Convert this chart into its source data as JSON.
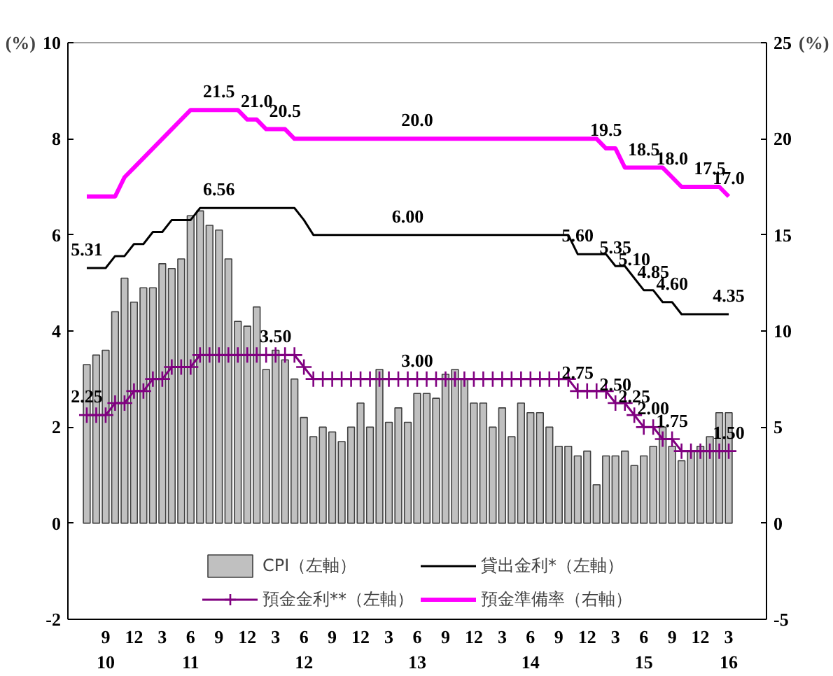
{
  "chart_data": {
    "type": "bar",
    "ylabel": "(%)",
    "y2label": "(%)",
    "x": [
      "2010-07",
      "2010-08",
      "2010-09",
      "2010-10",
      "2010-11",
      "2010-12",
      "2011-01",
      "2011-02",
      "2011-03",
      "2011-04",
      "2011-05",
      "2011-06",
      "2011-07",
      "2011-08",
      "2011-09",
      "2011-10",
      "2011-11",
      "2011-12",
      "2012-01",
      "2012-02",
      "2012-03",
      "2012-04",
      "2012-05",
      "2012-06",
      "2012-07",
      "2012-08",
      "2012-09",
      "2012-10",
      "2012-11",
      "2012-12",
      "2013-01",
      "2013-02",
      "2013-03",
      "2013-04",
      "2013-05",
      "2013-06",
      "2013-07",
      "2013-08",
      "2013-09",
      "2013-10",
      "2013-11",
      "2013-12",
      "2014-01",
      "2014-02",
      "2014-03",
      "2014-04",
      "2014-05",
      "2014-06",
      "2014-07",
      "2014-08",
      "2014-09",
      "2014-10",
      "2014-11",
      "2014-12",
      "2015-01",
      "2015-02",
      "2015-03",
      "2015-04",
      "2015-05",
      "2015-06",
      "2015-07",
      "2015-08",
      "2015-09",
      "2015-10",
      "2015-11",
      "2015-12",
      "2016-01",
      "2016-02",
      "2016-03"
    ],
    "series": [
      {
        "name": "CPI（左軸）",
        "color": "#c0c0c0",
        "values": [
          3.3,
          3.5,
          3.6,
          4.4,
          5.1,
          4.6,
          4.9,
          4.9,
          5.4,
          5.3,
          5.5,
          6.4,
          6.5,
          6.2,
          6.1,
          5.5,
          4.2,
          4.1,
          4.5,
          3.2,
          3.6,
          3.4,
          3.0,
          2.2,
          1.8,
          2.0,
          1.9,
          1.7,
          2.0,
          2.5,
          2.0,
          3.2,
          2.1,
          2.4,
          2.1,
          2.7,
          2.7,
          2.6,
          3.1,
          3.2,
          3.0,
          2.5,
          2.5,
          2.0,
          2.4,
          1.8,
          2.5,
          2.3,
          2.3,
          2.0,
          1.6,
          1.6,
          1.4,
          1.5,
          0.8,
          1.4,
          1.4,
          1.5,
          1.2,
          1.4,
          1.6,
          2.0,
          1.6,
          1.3,
          1.5,
          1.6,
          1.8,
          2.3,
          2.3
        ]
      },
      {
        "name": "貸出金利*（左軸）",
        "type": "line",
        "color": "#000000",
        "marker": "none",
        "values": [
          5.31,
          5.31,
          5.31,
          5.56,
          5.56,
          5.81,
          5.81,
          6.06,
          6.06,
          6.31,
          6.31,
          6.31,
          6.56,
          6.56,
          6.56,
          6.56,
          6.56,
          6.56,
          6.56,
          6.56,
          6.56,
          6.56,
          6.56,
          6.31,
          6.0,
          6.0,
          6.0,
          6.0,
          6.0,
          6.0,
          6.0,
          6.0,
          6.0,
          6.0,
          6.0,
          6.0,
          6.0,
          6.0,
          6.0,
          6.0,
          6.0,
          6.0,
          6.0,
          6.0,
          6.0,
          6.0,
          6.0,
          6.0,
          6.0,
          6.0,
          6.0,
          6.0,
          5.6,
          5.6,
          5.6,
          5.6,
          5.35,
          5.35,
          5.1,
          4.85,
          4.85,
          4.6,
          4.6,
          4.35,
          4.35,
          4.35,
          4.35,
          4.35,
          4.35
        ],
        "value_labels": [
          "5.31",
          null,
          null,
          null,
          null,
          null,
          null,
          null,
          null,
          null,
          null,
          null,
          null,
          null,
          "6.56",
          null,
          null,
          null,
          null,
          null,
          null,
          null,
          null,
          null,
          null,
          null,
          null,
          null,
          null,
          null,
          null,
          null,
          null,
          null,
          "6.00",
          null,
          null,
          null,
          null,
          null,
          null,
          null,
          null,
          null,
          null,
          null,
          null,
          null,
          null,
          null,
          null,
          null,
          "5.60",
          null,
          null,
          null,
          "5.35",
          null,
          "5.10",
          null,
          "4.85",
          null,
          "4.60",
          null,
          null,
          null,
          null,
          null,
          "4.35"
        ]
      },
      {
        "name": "預金金利**（左軸）",
        "type": "line",
        "color": "#800080",
        "marker": "cross",
        "values": [
          2.25,
          2.25,
          2.25,
          2.5,
          2.5,
          2.75,
          2.75,
          3.0,
          3.0,
          3.25,
          3.25,
          3.25,
          3.5,
          3.5,
          3.5,
          3.5,
          3.5,
          3.5,
          3.5,
          3.5,
          3.5,
          3.5,
          3.5,
          3.25,
          3.0,
          3.0,
          3.0,
          3.0,
          3.0,
          3.0,
          3.0,
          3.0,
          3.0,
          3.0,
          3.0,
          3.0,
          3.0,
          3.0,
          3.0,
          3.0,
          3.0,
          3.0,
          3.0,
          3.0,
          3.0,
          3.0,
          3.0,
          3.0,
          3.0,
          3.0,
          3.0,
          3.0,
          2.75,
          2.75,
          2.75,
          2.75,
          2.5,
          2.5,
          2.25,
          2.0,
          2.0,
          1.75,
          1.75,
          1.5,
          1.5,
          1.5,
          1.5,
          1.5,
          1.5
        ],
        "value_labels": [
          "2.25",
          null,
          null,
          null,
          null,
          null,
          null,
          null,
          null,
          null,
          null,
          null,
          null,
          null,
          null,
          null,
          null,
          null,
          null,
          null,
          "3.50",
          null,
          null,
          null,
          null,
          null,
          null,
          null,
          null,
          null,
          null,
          null,
          null,
          null,
          null,
          "3.00",
          null,
          null,
          null,
          null,
          null,
          null,
          null,
          null,
          null,
          null,
          null,
          null,
          null,
          null,
          null,
          null,
          "2.75",
          null,
          null,
          null,
          "2.50",
          null,
          "2.25",
          null,
          "2.00",
          null,
          "1.75",
          null,
          null,
          null,
          null,
          null,
          "1.50"
        ]
      },
      {
        "name": "預金準備率（右軸）",
        "type": "line",
        "axis": "y2",
        "color": "#ff00ff",
        "marker": "none",
        "values": [
          17.0,
          17.0,
          17.0,
          17.0,
          18.0,
          18.5,
          19.0,
          19.5,
          20.0,
          20.5,
          21.0,
          21.5,
          21.5,
          21.5,
          21.5,
          21.5,
          21.5,
          21.0,
          21.0,
          20.5,
          20.5,
          20.5,
          20.0,
          20.0,
          20.0,
          20.0,
          20.0,
          20.0,
          20.0,
          20.0,
          20.0,
          20.0,
          20.0,
          20.0,
          20.0,
          20.0,
          20.0,
          20.0,
          20.0,
          20.0,
          20.0,
          20.0,
          20.0,
          20.0,
          20.0,
          20.0,
          20.0,
          20.0,
          20.0,
          20.0,
          20.0,
          20.0,
          20.0,
          20.0,
          20.0,
          19.5,
          19.5,
          18.5,
          18.5,
          18.5,
          18.5,
          18.5,
          18.0,
          17.5,
          17.5,
          17.5,
          17.5,
          17.5,
          17.0
        ],
        "value_labels": [
          null,
          null,
          null,
          null,
          null,
          null,
          null,
          null,
          null,
          null,
          null,
          null,
          null,
          null,
          "21.5",
          null,
          null,
          null,
          "21.0",
          null,
          null,
          "20.5",
          null,
          null,
          null,
          null,
          null,
          null,
          null,
          null,
          null,
          null,
          null,
          null,
          null,
          "20.0",
          null,
          null,
          null,
          null,
          null,
          null,
          null,
          null,
          null,
          null,
          null,
          null,
          null,
          null,
          null,
          null,
          null,
          null,
          null,
          "19.5",
          null,
          null,
          null,
          "18.5",
          null,
          null,
          "18.0",
          null,
          null,
          null,
          "17.5",
          null,
          "17.0"
        ]
      }
    ],
    "xlim": [
      "2010-05",
      "2016-07"
    ],
    "xticks": [
      {
        "value": "2010-09",
        "label": "9\n10"
      },
      {
        "value": "2010-12",
        "label": "12"
      },
      {
        "value": "2011-03",
        "label": "3"
      },
      {
        "value": "2011-06",
        "label": "6\n11"
      },
      {
        "value": "2011-09",
        "label": "9"
      },
      {
        "value": "2011-12",
        "label": "12"
      },
      {
        "value": "2012-03",
        "label": "3"
      },
      {
        "value": "2012-06",
        "label": "6\n12"
      },
      {
        "value": "2012-09",
        "label": "9"
      },
      {
        "value": "2012-12",
        "label": "12"
      },
      {
        "value": "2013-03",
        "label": "3"
      },
      {
        "value": "2013-06",
        "label": "6\n13"
      },
      {
        "value": "2013-09",
        "label": "9"
      },
      {
        "value": "2013-12",
        "label": "12"
      },
      {
        "value": "2014-03",
        "label": "3"
      },
      {
        "value": "2014-06",
        "label": "6\n14"
      },
      {
        "value": "2014-09",
        "label": "9"
      },
      {
        "value": "2014-12",
        "label": "12"
      },
      {
        "value": "2015-03",
        "label": "3"
      },
      {
        "value": "2015-06",
        "label": "6\n15"
      },
      {
        "value": "2015-09",
        "label": "9"
      },
      {
        "value": "2015-12",
        "label": "12"
      },
      {
        "value": "2016-03",
        "label": "3\n16"
      }
    ],
    "ylim": [
      -2,
      10
    ],
    "yticks": [
      -2,
      0,
      2,
      4,
      6,
      8,
      10
    ],
    "y2lim": [
      -5,
      25
    ],
    "y2ticks": [
      -5,
      0,
      5,
      10,
      15,
      20,
      25
    ],
    "legend": "bottom"
  }
}
